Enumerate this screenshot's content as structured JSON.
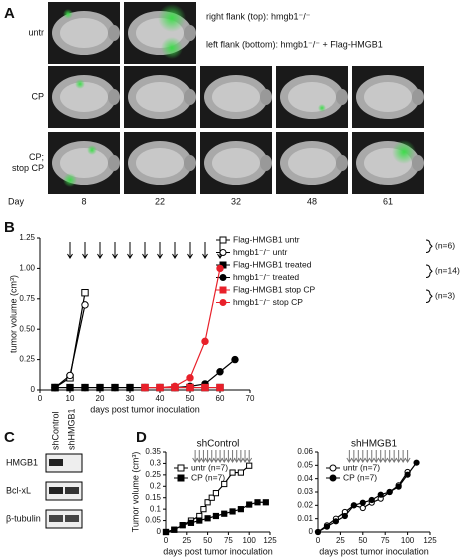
{
  "panel_labels": [
    "A",
    "B",
    "C",
    "D"
  ],
  "panel_a": {
    "row_labels": [
      "untr",
      "CP",
      "CP;\nstop CP"
    ],
    "day_label": "Day",
    "days": [
      8,
      22,
      32,
      48,
      61
    ],
    "annotations": [
      "right flank (top): hmgb1⁻/⁻",
      "left flank (bottom): hmgb1⁻/⁻ + Flag-HMGB1"
    ]
  },
  "panel_c": {
    "lanes": [
      "shControl",
      "shHMGB1"
    ],
    "bands": [
      "HMGB1",
      "Bcl-xL",
      "β-tubulin"
    ]
  },
  "chart_data": [
    {
      "type": "line",
      "xlabel": "days post tumor inoculation",
      "ylabel": "tumor volume (cm³)",
      "xlim": [
        0,
        70
      ],
      "xticks": [
        0,
        10,
        20,
        30,
        40,
        50,
        60,
        70
      ],
      "ylim": [
        0,
        1.25
      ],
      "yticks": [
        0,
        0.25,
        {
          "value": 0.5,
          "label": "0.50"
        },
        0.75,
        {
          "value": 1,
          "label": "1.00"
        },
        1.25
      ],
      "treatment_days": [
        10,
        15,
        20,
        25,
        30,
        35,
        40,
        45,
        50,
        55,
        60
      ],
      "groups": [
        "(n=6)",
        "(n=14)",
        "(n=3)"
      ],
      "series": [
        {
          "name": "Flag-HMGB1 untr",
          "color": "#000000",
          "marker": "square",
          "fill": "open",
          "x": [
            5,
            10,
            15
          ],
          "values": [
            0.02,
            0.1,
            0.8
          ]
        },
        {
          "name": "hmgb1⁻/⁻ untr",
          "color": "#000000",
          "marker": "circle",
          "fill": "open",
          "x": [
            5,
            10,
            15
          ],
          "values": [
            0.02,
            0.12,
            0.7
          ]
        },
        {
          "name": "Flag-HMGB1 treated",
          "color": "#000000",
          "marker": "square",
          "fill": "filled",
          "x": [
            5,
            10,
            15,
            20,
            25,
            30,
            35,
            40,
            45,
            50,
            55,
            60
          ],
          "values": [
            0.02,
            0.02,
            0.02,
            0.02,
            0.02,
            0.02,
            0.02,
            0.02,
            0.02,
            0.02,
            0.02,
            0.02
          ]
        },
        {
          "name": "hmgb1⁻/⁻ treated",
          "color": "#000000",
          "marker": "circle",
          "fill": "filled",
          "x": [
            5,
            10,
            15,
            20,
            25,
            30,
            35,
            40,
            45,
            50,
            55,
            60,
            65
          ],
          "values": [
            0.02,
            0.02,
            0.02,
            0.02,
            0.02,
            0.02,
            0.02,
            0.02,
            0.02,
            0.03,
            0.05,
            0.15,
            0.25
          ]
        },
        {
          "name": "Flag-HMGB1 stop CP",
          "color": "#e8202a",
          "marker": "square",
          "fill": "filled",
          "x": [
            35,
            40,
            45,
            50,
            55,
            60
          ],
          "values": [
            0.02,
            0.02,
            0.02,
            0.02,
            0.02,
            0.02
          ]
        },
        {
          "name": "hmgb1⁻/⁻ stop CP",
          "color": "#e8202a",
          "marker": "circle",
          "fill": "filled",
          "x": [
            35,
            40,
            45,
            50,
            55,
            60
          ],
          "values": [
            0.02,
            0.02,
            0.03,
            0.1,
            0.4,
            1.0
          ]
        }
      ]
    },
    {
      "type": "line",
      "title": "shControl",
      "xlabel": "days post tumor inoculation",
      "ylabel": "Tumor volume (cm³)",
      "xlim": [
        0,
        125
      ],
      "xticks": [
        0,
        25,
        50,
        75,
        100,
        125
      ],
      "ylim": [
        0,
        0.35
      ],
      "yticks": [
        0,
        0.05,
        0.1,
        0.15,
        0.2,
        0.25,
        0.3,
        0.35
      ],
      "treatment_days": [
        35,
        40,
        45,
        50,
        55,
        60,
        65,
        70,
        75,
        80,
        85,
        90,
        95,
        100
      ],
      "series": [
        {
          "name": "untr (n=7)",
          "color": "#000000",
          "marker": "square",
          "fill": "open",
          "x": [
            0,
            10,
            20,
            30,
            40,
            45,
            50,
            55,
            60,
            70,
            80,
            90,
            100
          ],
          "values": [
            0,
            0.01,
            0.03,
            0.05,
            0.07,
            0.1,
            0.13,
            0.15,
            0.17,
            0.21,
            0.26,
            0.26,
            0.29
          ]
        },
        {
          "name": "CP (n=7)",
          "color": "#000000",
          "marker": "square",
          "fill": "filled",
          "x": [
            0,
            10,
            20,
            30,
            40,
            50,
            60,
            70,
            80,
            90,
            100,
            110,
            120
          ],
          "values": [
            0,
            0.01,
            0.03,
            0.04,
            0.05,
            0.06,
            0.07,
            0.08,
            0.09,
            0.1,
            0.12,
            0.13,
            0.13
          ]
        }
      ]
    },
    {
      "type": "line",
      "title": "shHMGB1",
      "xlabel": "days post tumor inoculation",
      "xlim": [
        0,
        125
      ],
      "xticks": [
        0,
        25,
        50,
        75,
        100,
        125
      ],
      "ylim": [
        0,
        0.06
      ],
      "yticks": [
        0,
        0.01,
        0.02,
        0.03,
        0.04,
        0.05,
        0.06
      ],
      "treatment_days": [
        35,
        40,
        45,
        50,
        55,
        60,
        65,
        70,
        75,
        80,
        85,
        90,
        95,
        100
      ],
      "series": [
        {
          "name": "untr (n=7)",
          "color": "#000000",
          "marker": "circle",
          "fill": "open",
          "x": [
            0,
            10,
            20,
            30,
            40,
            50,
            60,
            70,
            80,
            90,
            100
          ],
          "values": [
            0,
            0.005,
            0.01,
            0.015,
            0.02,
            0.018,
            0.022,
            0.025,
            0.03,
            0.035,
            0.045
          ]
        },
        {
          "name": "CP (n=7)",
          "color": "#000000",
          "marker": "circle",
          "fill": "filled",
          "x": [
            0,
            10,
            20,
            30,
            40,
            50,
            60,
            70,
            80,
            90,
            100,
            110
          ],
          "values": [
            0,
            0.004,
            0.008,
            0.012,
            0.02,
            0.022,
            0.024,
            0.028,
            0.03,
            0.034,
            0.043,
            0.052
          ]
        }
      ]
    }
  ]
}
